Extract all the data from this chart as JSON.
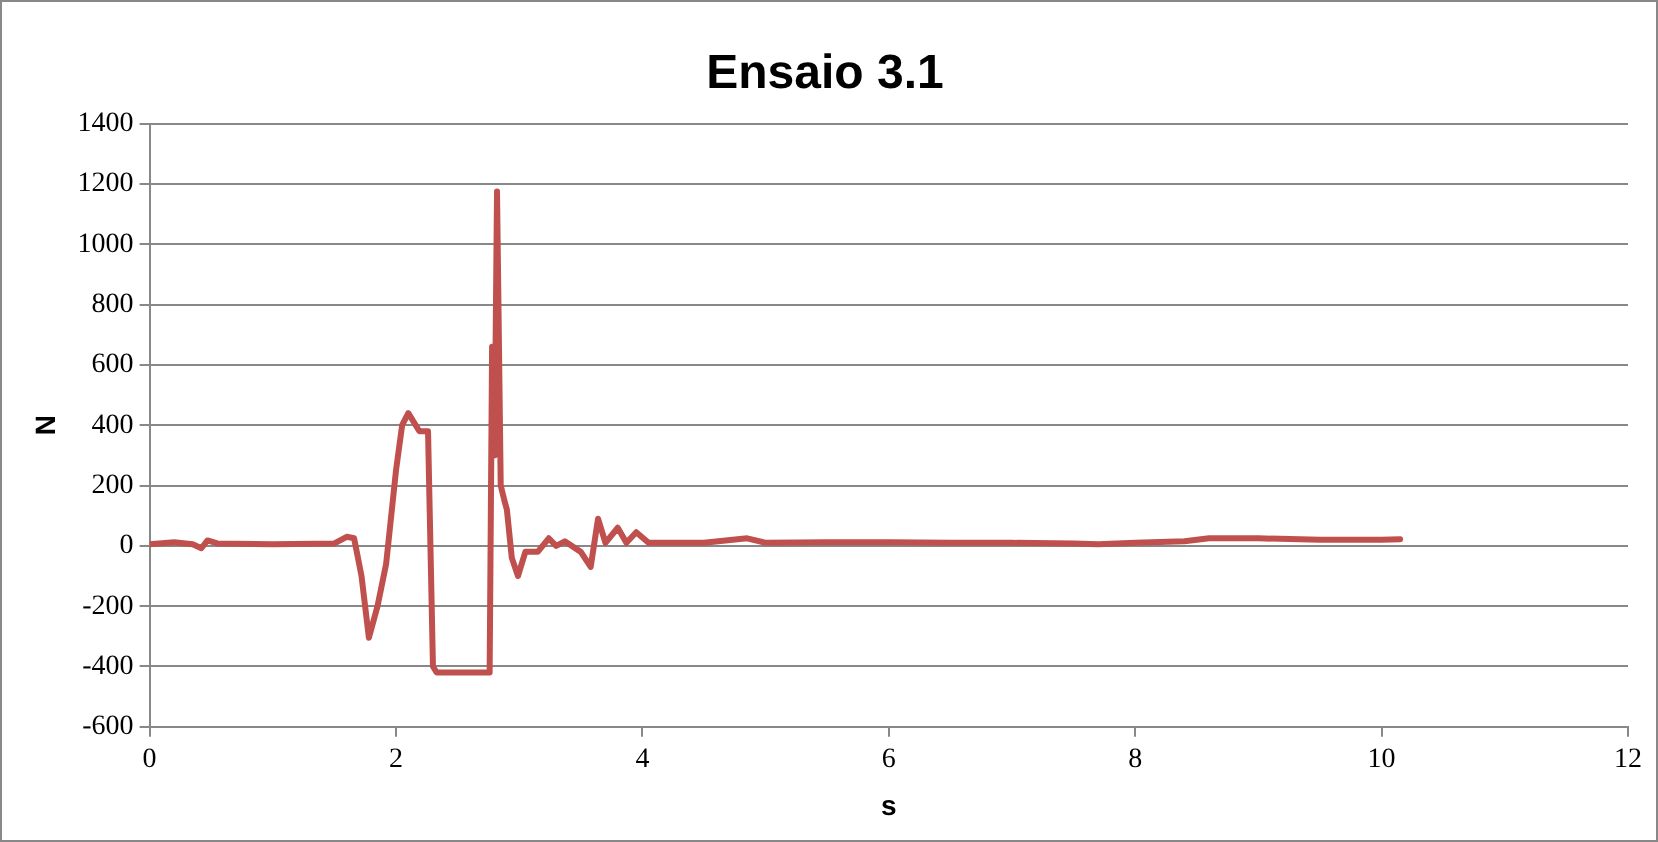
{
  "chart_data": {
    "type": "line",
    "title": "Ensaio 3.1",
    "xlabel": "s",
    "ylabel": "N",
    "xlim": [
      0,
      12
    ],
    "xticks": [
      0,
      2,
      4,
      6,
      8,
      10,
      12
    ],
    "ylim": [
      -600,
      1400
    ],
    "yticks": [
      -600,
      -400,
      -200,
      0,
      200,
      400,
      600,
      800,
      1000,
      1200,
      1400
    ],
    "grid": "y",
    "legend": false,
    "marker": "none",
    "line_style": "solid",
    "series": [
      {
        "color": "#c0504d",
        "x": [
          0,
          0.2,
          0.35,
          0.42,
          0.47,
          0.55,
          1.0,
          1.5,
          1.6,
          1.66,
          1.72,
          1.78,
          1.85,
          1.92,
          2.0,
          2.05,
          2.1,
          2.19,
          2.26,
          2.3,
          2.33,
          2.5,
          2.76,
          2.78,
          2.8,
          2.82,
          2.85,
          2.88,
          2.9,
          2.94,
          2.99,
          3.05,
          3.15,
          3.24,
          3.3,
          3.37,
          3.5,
          3.58,
          3.64,
          3.7,
          3.8,
          3.87,
          3.95,
          4.05,
          4.2,
          4.5,
          4.85,
          5.0,
          5.5,
          6.0,
          6.5,
          7.0,
          7.5,
          7.7,
          8.0,
          8.4,
          8.6,
          9.0,
          9.5,
          10.0,
          10.15
        ],
        "values": [
          5,
          12,
          5,
          -8,
          18,
          8,
          5,
          8,
          30,
          25,
          -100,
          -305,
          -200,
          -60,
          250,
          400,
          440,
          380,
          380,
          -400,
          -420,
          -420,
          -420,
          660,
          300,
          1175,
          200,
          150,
          120,
          -40,
          -100,
          -20,
          -20,
          25,
          0,
          15,
          -20,
          -70,
          90,
          10,
          60,
          10,
          45,
          10,
          10,
          10,
          25,
          10,
          12,
          12,
          10,
          10,
          8,
          5,
          10,
          15,
          25,
          25,
          20,
          20,
          22
        ]
      }
    ]
  }
}
